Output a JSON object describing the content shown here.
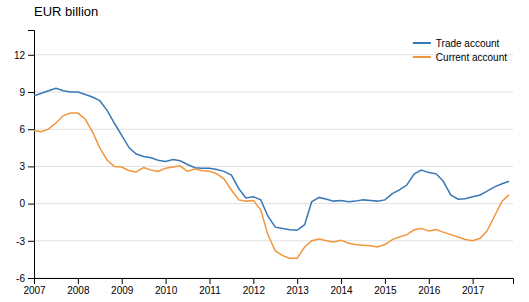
{
  "chart_data": {
    "type": "line",
    "title": "EUR billion",
    "x": [
      2007.0,
      2007.17,
      2007.33,
      2007.5,
      2007.67,
      2007.83,
      2008.0,
      2008.17,
      2008.33,
      2008.5,
      2008.67,
      2008.83,
      2009.0,
      2009.17,
      2009.33,
      2009.5,
      2009.67,
      2009.83,
      2010.0,
      2010.17,
      2010.33,
      2010.5,
      2010.67,
      2010.83,
      2011.0,
      2011.17,
      2011.33,
      2011.5,
      2011.67,
      2011.83,
      2012.0,
      2012.17,
      2012.33,
      2012.5,
      2012.67,
      2012.83,
      2013.0,
      2013.17,
      2013.33,
      2013.5,
      2013.67,
      2013.83,
      2014.0,
      2014.17,
      2014.33,
      2014.5,
      2014.67,
      2014.83,
      2015.0,
      2015.17,
      2015.33,
      2015.5,
      2015.67,
      2015.83,
      2016.0,
      2016.17,
      2016.33,
      2016.5,
      2016.67,
      2016.83,
      2017.0,
      2017.17,
      2017.33,
      2017.5,
      2017.67,
      2017.83
    ],
    "series": [
      {
        "name": "Trade account",
        "color": "#3878b4",
        "values": [
          8.7,
          8.9,
          9.1,
          9.3,
          9.1,
          9.0,
          9.0,
          8.8,
          8.6,
          8.3,
          7.5,
          6.5,
          5.5,
          4.5,
          4.0,
          3.8,
          3.7,
          3.5,
          3.4,
          3.55,
          3.45,
          3.15,
          2.9,
          2.85,
          2.85,
          2.75,
          2.6,
          2.3,
          1.2,
          0.45,
          0.55,
          0.3,
          -1.0,
          -1.9,
          -2.0,
          -2.1,
          -2.15,
          -1.7,
          0.15,
          0.5,
          0.35,
          0.2,
          0.25,
          0.15,
          0.2,
          0.3,
          0.25,
          0.2,
          0.3,
          0.8,
          1.1,
          1.5,
          2.4,
          2.7,
          2.5,
          2.4,
          1.8,
          0.7,
          0.35,
          0.4,
          0.55,
          0.7,
          1.0,
          1.35,
          1.6,
          1.8
        ]
      },
      {
        "name": "Current account",
        "color": "#f0963c",
        "values": [
          5.9,
          5.8,
          6.0,
          6.5,
          7.1,
          7.3,
          7.3,
          6.8,
          5.8,
          4.5,
          3.5,
          3.0,
          2.95,
          2.65,
          2.55,
          2.9,
          2.7,
          2.6,
          2.85,
          2.95,
          3.05,
          2.6,
          2.8,
          2.65,
          2.6,
          2.4,
          2.0,
          1.1,
          0.3,
          0.2,
          0.25,
          -0.5,
          -2.5,
          -3.8,
          -4.2,
          -4.4,
          -4.4,
          -3.5,
          -3.0,
          -2.85,
          -3.0,
          -3.1,
          -2.95,
          -3.2,
          -3.3,
          -3.35,
          -3.4,
          -3.5,
          -3.3,
          -2.9,
          -2.7,
          -2.5,
          -2.1,
          -2.0,
          -2.2,
          -2.1,
          -2.3,
          -2.5,
          -2.7,
          -2.9,
          -3.0,
          -2.8,
          -2.2,
          -1.0,
          0.2,
          0.7
        ]
      }
    ],
    "xlim": [
      2007.0,
      2017.92
    ],
    "xticks": [
      2007,
      2008,
      2009,
      2010,
      2011,
      2012,
      2013,
      2014,
      2015,
      2016,
      2017
    ],
    "ylim": [
      -6,
      14
    ],
    "yticks": [
      -6,
      -3,
      0,
      3,
      6,
      9,
      12
    ],
    "grid": true,
    "legend": "top-right"
  }
}
